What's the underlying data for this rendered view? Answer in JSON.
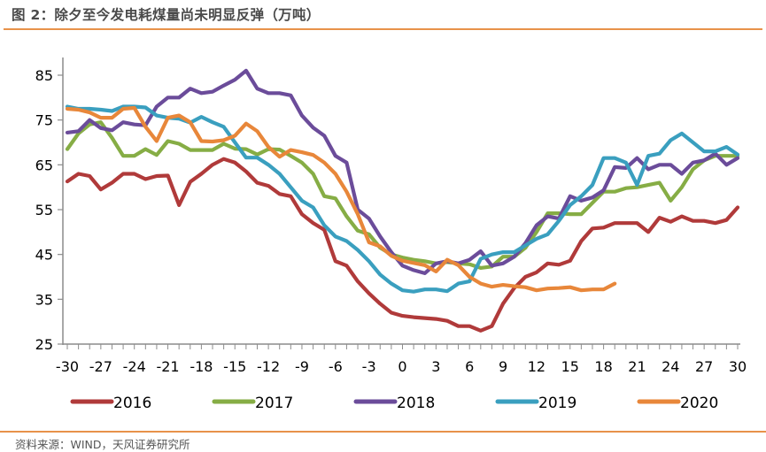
{
  "figure": {
    "title": "图 2：除夕至今发电耗煤量尚未明显反弹（万吨）",
    "source": "资料来源：WIND，天风证券研究所",
    "accent_color": "#e8924a"
  },
  "chart_data": {
    "type": "line",
    "title": "除夕至今发电耗煤量尚未明显反弹（万吨）",
    "xlabel": "",
    "ylabel": "",
    "xlim": [
      -30,
      30
    ],
    "ylim": [
      25,
      85
    ],
    "yticks": [
      25,
      35,
      45,
      55,
      65,
      75,
      85
    ],
    "xticks": [
      -30,
      -27,
      -24,
      -21,
      -18,
      -15,
      -12,
      -9,
      -6,
      -3,
      0,
      3,
      6,
      9,
      12,
      15,
      18,
      21,
      24,
      27,
      30
    ],
    "grid": false,
    "legend": "bottom",
    "x": [
      -30,
      -29,
      -28,
      -27,
      -26,
      -25,
      -24,
      -23,
      -22,
      -21,
      -20,
      -19,
      -18,
      -17,
      -16,
      -15,
      -14,
      -13,
      -12,
      -11,
      -10,
      -9,
      -8,
      -7,
      -6,
      -5,
      -4,
      -3,
      -2,
      -1,
      0,
      1,
      2,
      3,
      4,
      5,
      6,
      7,
      8,
      9,
      10,
      11,
      12,
      13,
      14,
      15,
      16,
      17,
      18,
      19,
      20,
      21,
      22,
      23,
      24,
      25,
      26,
      27,
      28,
      29,
      30
    ],
    "series": [
      {
        "name": "2016",
        "color": "#b03a3a",
        "values": [
          61.3,
          63,
          62.5,
          59.5,
          61,
          63,
          63,
          61.8,
          62.5,
          62.6,
          56,
          61.2,
          63,
          65,
          66.3,
          65.5,
          63.5,
          61,
          60.3,
          58.5,
          58,
          54,
          52,
          50.5,
          43.5,
          42.5,
          39,
          36.3,
          34,
          32,
          31.3,
          31,
          30.8,
          30.6,
          30.2,
          29,
          29,
          28,
          29,
          34,
          37.5,
          40,
          41,
          43,
          42.7,
          43.6,
          48,
          50.8,
          51,
          52,
          52,
          52,
          50,
          53.2,
          52.3,
          53.5,
          52.5,
          52.5,
          52,
          52.7,
          55.5
        ]
      },
      {
        "name": "2017",
        "color": "#86ad45",
        "values": [
          68.5,
          72,
          74,
          74.5,
          71,
          67,
          67,
          68.5,
          67.2,
          70.3,
          69.7,
          68.3,
          68.3,
          68.3,
          69.7,
          68.6,
          68.5,
          67.3,
          68.5,
          68.4,
          67,
          65.5,
          63,
          58,
          57.5,
          53.5,
          50.3,
          49.5,
          46.5,
          45,
          44.3,
          43.8,
          43.5,
          43,
          43.3,
          43,
          42.8,
          42,
          42.3,
          44.5,
          44.5,
          46.5,
          50,
          54.2,
          54.2,
          54,
          54,
          56.5,
          59,
          59,
          59.8,
          60,
          60.5,
          61,
          57,
          60,
          64,
          66,
          67,
          67,
          67
        ]
      },
      {
        "name": "2018",
        "color": "#6b4c9a",
        "values": [
          72.2,
          72.5,
          75,
          73.2,
          72.7,
          74.5,
          74,
          73.8,
          78,
          80,
          80,
          82,
          81,
          81.3,
          82.7,
          84,
          86,
          82,
          81,
          81,
          80.5,
          76,
          73.3,
          71.5,
          67,
          65.5,
          55,
          53,
          49,
          45.5,
          42.5,
          41.5,
          40.8,
          43,
          43.5,
          43,
          43.8,
          45.7,
          42.5,
          43,
          44.5,
          47.5,
          51.5,
          53.5,
          53,
          58,
          57,
          57.7,
          59.3,
          64.5,
          64.3,
          66.5,
          64,
          65,
          65,
          63,
          65.5,
          66,
          67.5,
          65,
          66.5
        ]
      },
      {
        "name": "2019",
        "color": "#3a9fbf",
        "values": [
          78,
          77.5,
          77.5,
          77.3,
          77,
          78,
          78,
          77.8,
          76,
          75.5,
          75.3,
          74.4,
          75.7,
          74.5,
          73.5,
          70,
          66.6,
          66.6,
          65,
          63,
          60,
          57,
          55.5,
          51.5,
          49,
          48,
          46,
          43.5,
          40.5,
          38.5,
          37,
          36.7,
          37.2,
          37.2,
          36.8,
          38.5,
          39,
          44,
          45,
          45.5,
          45.5,
          47,
          48.5,
          49.5,
          52.5,
          56,
          58,
          60.5,
          66.5,
          66.5,
          65.5,
          60.5,
          67,
          67.5,
          70.5,
          72,
          70,
          68,
          68,
          69,
          67.3
        ]
      },
      {
        "name": "2020",
        "color": "#e8873a",
        "values": [
          77.5,
          77.3,
          76.7,
          75.5,
          75.5,
          77.5,
          77.7,
          73.5,
          70.3,
          75.5,
          76,
          74.5,
          70.3,
          70.2,
          70.5,
          71.5,
          74.2,
          72.5,
          69,
          66.8,
          68.3,
          67.8,
          67.2,
          65.5,
          63,
          59,
          54,
          47.7,
          46.8,
          44.7,
          43.6,
          43.1,
          42.6,
          41.2,
          43.8,
          42.6,
          40,
          38.5,
          37.8,
          38.2,
          37.9,
          37.7,
          37,
          37.4,
          37.5,
          37.7,
          37,
          37.2,
          37.2,
          38.5,
          null,
          null,
          null,
          null,
          null,
          null,
          null,
          null,
          null,
          null,
          null
        ]
      }
    ]
  }
}
